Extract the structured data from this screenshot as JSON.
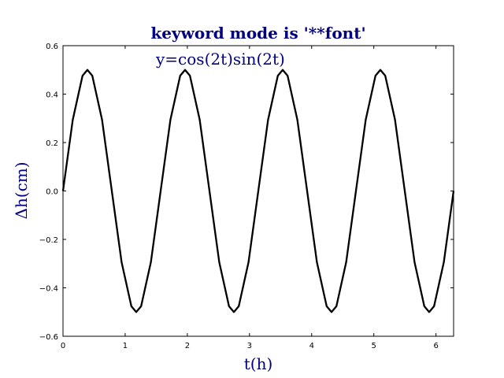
{
  "chart_data": {
    "type": "line",
    "title": "keyword mode is '**font'",
    "xlabel": "t(h)",
    "ylabel": "Δh(cm)",
    "annotation": "y=cos(2t)sin(2t)",
    "xlim": [
      0,
      6.283185307
    ],
    "ylim": [
      -0.6,
      0.6
    ],
    "xticks": [
      0,
      1,
      2,
      3,
      4,
      5,
      6
    ],
    "xtick_labels": [
      "0",
      "1",
      "2",
      "3",
      "4",
      "5",
      "6"
    ],
    "yticks": [
      -0.6,
      -0.4,
      -0.2,
      0.0,
      0.2,
      0.4,
      0.6
    ],
    "ytick_labels": [
      "−0.6",
      "−0.4",
      "−0.2",
      "0.0",
      "0.2",
      "0.4",
      "0.6"
    ],
    "grid": false,
    "series": [
      {
        "color": "#000000",
        "x": [
          0,
          0.1571,
          0.3142,
          0.3927,
          0.4712,
          0.6283,
          0.7854,
          0.9425,
          1.0996,
          1.1781,
          1.2566,
          1.4137,
          1.5708,
          1.7279,
          1.885,
          1.9635,
          2.042,
          2.1991,
          2.3562,
          2.5133,
          2.6704,
          2.7489,
          2.8274,
          2.9845,
          3.1416,
          3.2987,
          3.4558,
          3.5343,
          3.6128,
          3.7699,
          3.927,
          4.0841,
          4.2412,
          4.3197,
          4.3982,
          4.5553,
          4.7124,
          4.8695,
          5.0265,
          5.1051,
          5.1836,
          5.3407,
          5.4978,
          5.6549,
          5.812,
          5.8905,
          5.969,
          6.1261,
          6.2832
        ],
        "y": [
          0,
          0.294,
          0.476,
          0.5,
          0.476,
          0.294,
          0,
          -0.294,
          -0.476,
          -0.5,
          -0.476,
          -0.294,
          0,
          0.294,
          0.476,
          0.5,
          0.476,
          0.294,
          0,
          -0.294,
          -0.476,
          -0.5,
          -0.476,
          -0.294,
          0,
          0.294,
          0.476,
          0.5,
          0.476,
          0.294,
          0,
          -0.294,
          -0.476,
          -0.5,
          -0.476,
          -0.294,
          0,
          0.294,
          0.476,
          0.5,
          0.476,
          0.294,
          0,
          -0.294,
          -0.476,
          -0.5,
          -0.476,
          -0.294,
          0
        ]
      }
    ]
  }
}
